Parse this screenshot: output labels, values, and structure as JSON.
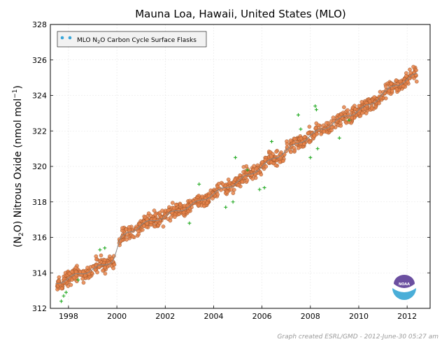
{
  "chart_data": {
    "type": "scatter",
    "title": "Mauna Loa, Hawaii, United States (MLO)",
    "ylabel_parts": {
      "open": "(N",
      "sub": "2",
      "mid": "O) Nitrous Oxide (nmol mol",
      "sup": "−1",
      "close": ")"
    },
    "xlim": [
      1997.25,
      2012.95
    ],
    "ylim": [
      312,
      328
    ],
    "xticks": [
      1998,
      2000,
      2002,
      2004,
      2006,
      2008,
      2010,
      2012
    ],
    "yticks": [
      312,
      314,
      316,
      318,
      320,
      322,
      324,
      326,
      328
    ],
    "grid": true,
    "legend": {
      "placement": "top-left",
      "label_parts": {
        "pre": "MLO N",
        "sub": "2",
        "post": "O Carbon Cycle Surface Flasks"
      }
    },
    "series": [
      {
        "marker": "circle",
        "color": "#e8844a",
        "trend": [
          [
            1997.5,
            313.4
          ],
          [
            1998.0,
            313.7
          ],
          [
            1998.5,
            313.95
          ],
          [
            1999.0,
            314.2
          ],
          [
            1999.5,
            314.45
          ],
          [
            1999.85,
            314.75
          ],
          [
            2000.15,
            315.9
          ],
          [
            2000.5,
            316.3
          ],
          [
            2001.0,
            316.7
          ],
          [
            2001.5,
            316.95
          ],
          [
            2002.0,
            317.2
          ],
          [
            2002.5,
            317.5
          ],
          [
            2003.0,
            317.75
          ],
          [
            2003.5,
            318.1
          ],
          [
            2004.0,
            318.45
          ],
          [
            2004.5,
            318.8
          ],
          [
            2005.0,
            319.15
          ],
          [
            2005.5,
            319.55
          ],
          [
            2006.0,
            320.0
          ],
          [
            2006.5,
            320.45
          ],
          [
            2007.0,
            320.9
          ],
          [
            2007.5,
            321.3
          ],
          [
            2008.0,
            321.75
          ],
          [
            2008.5,
            322.1
          ],
          [
            2009.0,
            322.5
          ],
          [
            2009.5,
            322.85
          ],
          [
            2010.0,
            323.15
          ],
          [
            2010.5,
            323.5
          ],
          [
            2011.0,
            324.1
          ],
          [
            2011.5,
            324.55
          ],
          [
            2012.0,
            324.9
          ],
          [
            2012.4,
            325.2
          ]
        ],
        "scatter_sd": 0.4
      }
    ],
    "outliers": {
      "marker": "plus",
      "color": "#22aa22",
      "points": [
        [
          1997.7,
          312.4
        ],
        [
          1997.8,
          312.7
        ],
        [
          1997.9,
          312.9
        ],
        [
          1998.4,
          313.6
        ],
        [
          1999.3,
          315.3
        ],
        [
          1999.5,
          315.4
        ],
        [
          2003.0,
          316.8
        ],
        [
          2003.4,
          319.0
        ],
        [
          2004.5,
          317.7
        ],
        [
          2004.8,
          318.0
        ],
        [
          2004.9,
          320.5
        ],
        [
          2005.4,
          319.8
        ],
        [
          2005.9,
          318.7
        ],
        [
          2006.1,
          318.8
        ],
        [
          2006.4,
          321.4
        ],
        [
          2007.5,
          322.9
        ],
        [
          2007.6,
          322.1
        ],
        [
          2008.0,
          320.5
        ],
        [
          2008.2,
          323.4
        ],
        [
          2008.25,
          323.2
        ],
        [
          2008.3,
          321.0
        ],
        [
          2009.2,
          321.6
        ],
        [
          2009.6,
          322.6
        ]
      ]
    }
  },
  "footer": {
    "credit": "Graph created ESRL/GMD - 2012-June-30 05:27 am"
  },
  "logo": {
    "text": "NOAA"
  }
}
